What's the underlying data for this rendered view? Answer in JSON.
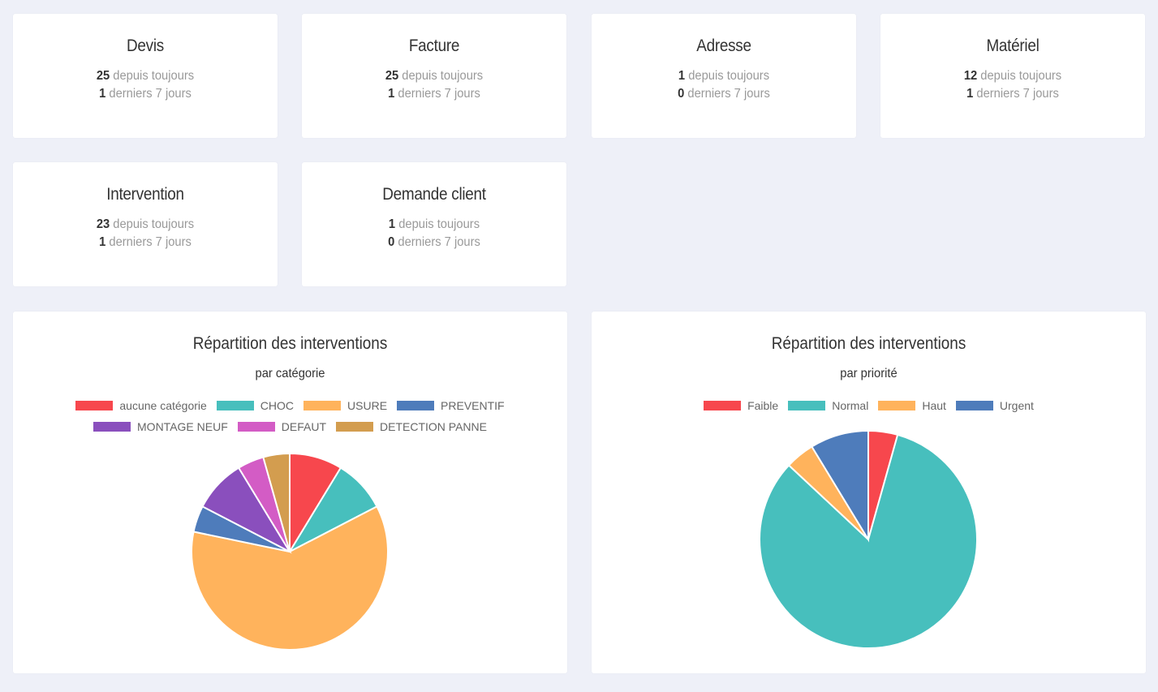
{
  "stats": [
    {
      "title": "Devis",
      "total": "25",
      "total_label": "depuis toujours",
      "recent": "1",
      "recent_label": "derniers 7 jours"
    },
    {
      "title": "Facture",
      "total": "25",
      "total_label": "depuis toujours",
      "recent": "1",
      "recent_label": "derniers 7 jours"
    },
    {
      "title": "Adresse",
      "total": "1",
      "total_label": "depuis toujours",
      "recent": "0",
      "recent_label": "derniers 7 jours"
    },
    {
      "title": "Matériel",
      "total": "12",
      "total_label": "depuis toujours",
      "recent": "1",
      "recent_label": "derniers 7 jours"
    },
    {
      "title": "Intervention",
      "total": "23",
      "total_label": "depuis toujours",
      "recent": "1",
      "recent_label": "derniers 7 jours"
    },
    {
      "title": "Demande client",
      "total": "1",
      "total_label": "depuis toujours",
      "recent": "0",
      "recent_label": "derniers 7 jours"
    }
  ],
  "chart_data": [
    {
      "type": "pie",
      "title": "Répartition des interventions",
      "subtitle": "par catégorie",
      "legend": "top",
      "categories": [
        "aucune catégorie",
        "CHOC",
        "USURE",
        "PREVENTIF",
        "MONTAGE NEUF",
        "DEFAUT",
        "DETECTION PANNE"
      ],
      "values": [
        2,
        2,
        14,
        1,
        2,
        1,
        1
      ],
      "colors": [
        "#f7474d",
        "#47bfbd",
        "#ffb35c",
        "#4e7cbb",
        "#8a4fbd",
        "#d35cc5",
        "#d39d4f"
      ]
    },
    {
      "type": "pie",
      "title": "Répartition des interventions",
      "subtitle": "par priorité",
      "legend": "top",
      "categories": [
        "Faible",
        "Normal",
        "Haut",
        "Urgent"
      ],
      "values": [
        1,
        19,
        1,
        2
      ],
      "colors": [
        "#f7474d",
        "#47bfbd",
        "#ffb35c",
        "#4e7cbb"
      ]
    }
  ]
}
